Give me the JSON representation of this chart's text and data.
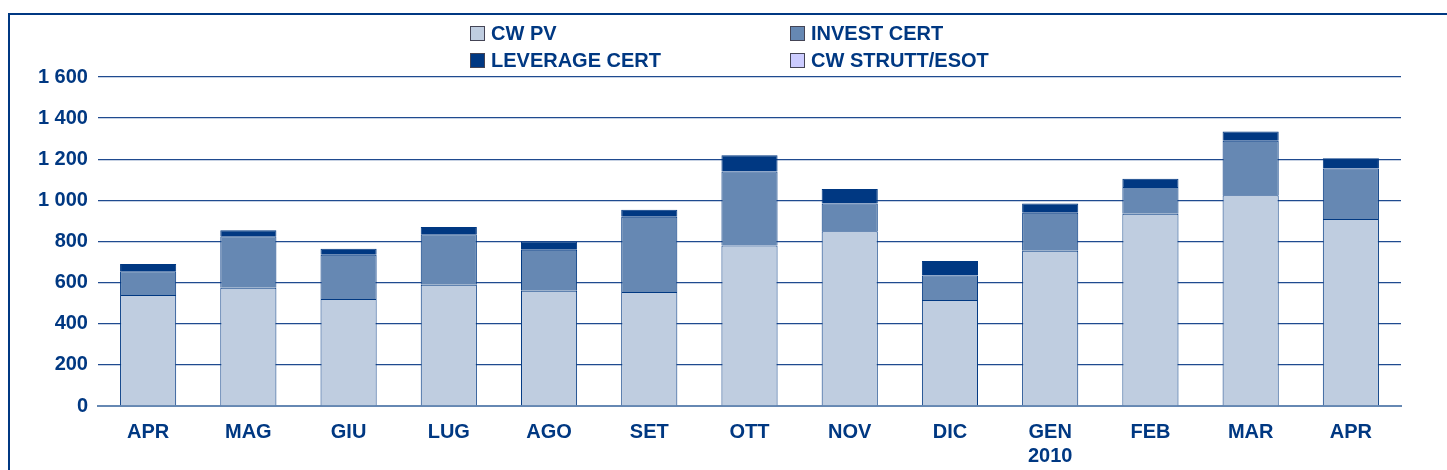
{
  "chart_data": {
    "type": "bar",
    "stacked": true,
    "categories": [
      "APR",
      "MAG",
      "GIU",
      "LUG",
      "AGO",
      "SET",
      "OTT",
      "NOV",
      "DIC",
      "GEN 2010",
      "FEB",
      "MAR",
      "APR"
    ],
    "series": [
      {
        "name": "CW PV",
        "color": "#bfcde0",
        "values": [
          540,
          575,
          520,
          590,
          560,
          555,
          780,
          850,
          515,
          755,
          935,
          1025,
          910
        ]
      },
      {
        "name": "INVEST CERT",
        "color": "#6688b3",
        "values": [
          115,
          250,
          215,
          245,
          200,
          365,
          360,
          135,
          120,
          185,
          130,
          265,
          245
        ]
      },
      {
        "name": "LEVERAGE CERT",
        "color": "#003882",
        "values": [
          35,
          30,
          30,
          35,
          40,
          35,
          80,
          70,
          70,
          45,
          40,
          45,
          50
        ]
      },
      {
        "name": "CW STRUTT/ESOT",
        "color": "#ccccff",
        "values": [
          0,
          0,
          0,
          0,
          0,
          0,
          0,
          0,
          0,
          0,
          0,
          0,
          0
        ]
      }
    ],
    "ylim": [
      0,
      1600
    ],
    "yticks": [
      0,
      200,
      400,
      600,
      800,
      {
        "value": 1000,
        "label": "1 000"
      },
      {
        "value": 1200,
        "label": "1 200"
      },
      {
        "value": 1400,
        "label": "1 400"
      },
      {
        "value": 1600,
        "label": "1 600"
      }
    ],
    "grid": "y",
    "legend": "top"
  }
}
